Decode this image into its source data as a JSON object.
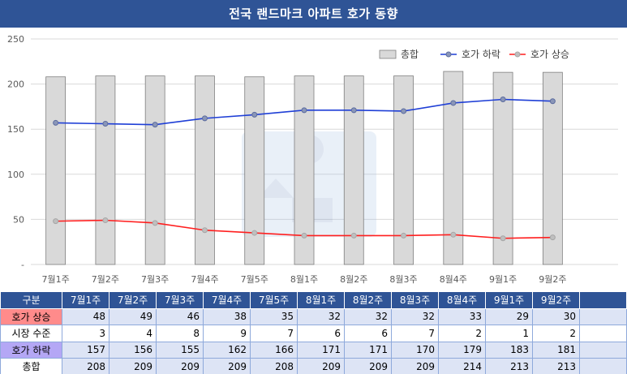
{
  "title": "전국 랜드마크 아파트 호가 동향",
  "chart_data": {
    "type": "bar+line",
    "categories": [
      "7월1주",
      "7월2주",
      "7월3주",
      "7월4주",
      "7월5주",
      "8월1주",
      "8월2주",
      "8월3주",
      "8월4주",
      "9월1주",
      "9월2주"
    ],
    "ylim": [
      0,
      250
    ],
    "yticks": [
      "-",
      "50",
      "100",
      "150",
      "200",
      "250"
    ],
    "grid": true,
    "legend_position": "top-right",
    "series": [
      {
        "name": "총합",
        "type": "bar",
        "color": "#d9d9d9",
        "values": [
          208,
          209,
          209,
          209,
          208,
          209,
          209,
          209,
          214,
          213,
          213
        ]
      },
      {
        "name": "호가 하락",
        "type": "line",
        "color": "#1f3fd6",
        "values": [
          157,
          156,
          155,
          162,
          166,
          171,
          171,
          170,
          179,
          183,
          181
        ]
      },
      {
        "name": "호가 상승",
        "type": "line",
        "color": "#ff1f1f",
        "values": [
          48,
          49,
          46,
          38,
          35,
          32,
          32,
          32,
          33,
          29,
          30
        ]
      }
    ]
  },
  "table": {
    "header_label": "구분",
    "rows": [
      {
        "label": "호가 상승",
        "values": [
          "48",
          "49",
          "46",
          "38",
          "35",
          "32",
          "32",
          "32",
          "33",
          "29",
          "30"
        ]
      },
      {
        "label": "시장 수준",
        "values": [
          "3",
          "4",
          "8",
          "9",
          "7",
          "6",
          "6",
          "7",
          "2",
          "1",
          "2"
        ]
      },
      {
        "label": "호가 하락",
        "values": [
          "157",
          "156",
          "155",
          "162",
          "166",
          "171",
          "171",
          "170",
          "179",
          "183",
          "181"
        ]
      },
      {
        "label": "총합",
        "values": [
          "208",
          "209",
          "209",
          "209",
          "208",
          "209",
          "209",
          "209",
          "214",
          "213",
          "213"
        ]
      }
    ]
  }
}
